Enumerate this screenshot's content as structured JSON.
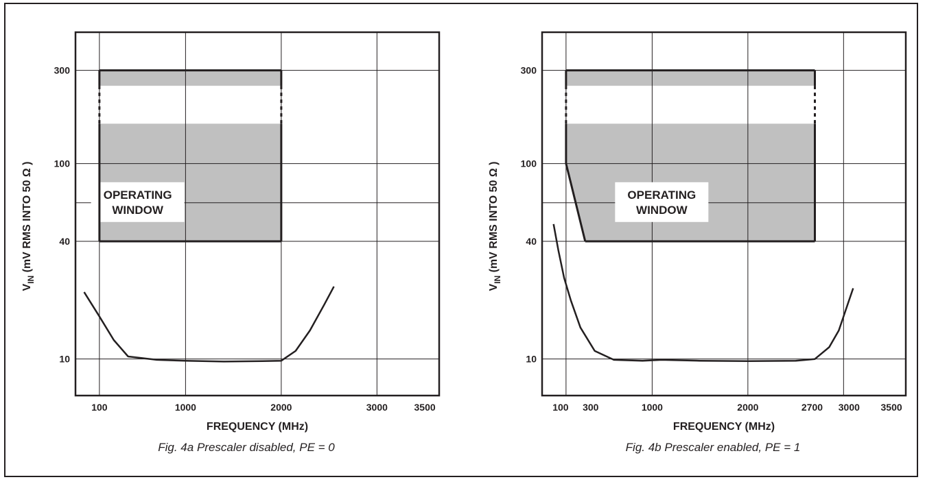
{
  "colors": {
    "ink": "#231f20",
    "region_fill": "#c0c0c0",
    "background": "#ffffff"
  },
  "chart_data": [
    {
      "type": "area",
      "caption": "Fig. 4a Prescaler disabled, PE = 0",
      "xlabel": "FREQUENCY (MHz)",
      "ylabel": "V",
      "ylabel_sub": "IN",
      "ylabel_rest": " (mV RMS INTO 50 Ω )",
      "y_scale": "log",
      "ylim": [
        6.5,
        470
      ],
      "xlim": [
        -150,
        3650
      ],
      "grid": true,
      "x_ticks": [
        {
          "value": 100,
          "label": "100"
        },
        {
          "value": 1000,
          "label": "1000"
        },
        {
          "value": 2000,
          "label": "2000"
        },
        {
          "value": 3000,
          "label": "3000"
        },
        {
          "value": 3500,
          "label": "3500"
        }
      ],
      "x_gridlines": [
        100,
        1000,
        2000,
        3000
      ],
      "y_ticks": [
        {
          "value": 300,
          "label": "300"
        },
        {
          "value": 100,
          "label": "100"
        },
        {
          "value": 40,
          "label": "40"
        },
        {
          "value": 10,
          "label": "10"
        }
      ],
      "y_gridlines": [
        300,
        100,
        63,
        40,
        10
      ],
      "window_label": [
        "OPERATING",
        "WINDOW"
      ],
      "window_label_center": {
        "x": 500,
        "y": 63
      },
      "operating_window": {
        "polygon": [
          [
            100,
            40
          ],
          [
            100,
            300
          ],
          [
            2000,
            300
          ],
          [
            2000,
            40
          ]
        ],
        "break_band": [
          160,
          250
        ]
      },
      "sensitivity_curve": [
        [
          -60,
          22
        ],
        [
          100,
          16.5
        ],
        [
          250,
          12.5
        ],
        [
          400,
          10.3
        ],
        [
          700,
          9.9
        ],
        [
          1000,
          9.8
        ],
        [
          1400,
          9.7
        ],
        [
          1800,
          9.75
        ],
        [
          2000,
          9.8
        ],
        [
          2150,
          11
        ],
        [
          2300,
          14
        ],
        [
          2450,
          19
        ],
        [
          2550,
          23.5
        ]
      ]
    },
    {
      "type": "area",
      "caption": "Fig. 4b Prescaler enabled, PE = 1",
      "xlabel": "FREQUENCY (MHz)",
      "ylabel": "V",
      "ylabel_sub": "IN",
      "ylabel_rest": " (mV RMS INTO 50 Ω )",
      "y_scale": "log",
      "ylim": [
        6.5,
        470
      ],
      "xlim": [
        -150,
        3650
      ],
      "grid": true,
      "x_ticks": [
        {
          "value": 100,
          "label": "100"
        },
        {
          "value": 300,
          "label": "300"
        },
        {
          "value": 1000,
          "label": "1000"
        },
        {
          "value": 2000,
          "label": "2000"
        },
        {
          "value": 2700,
          "label": "2700"
        },
        {
          "value": 3000,
          "label": "3000"
        },
        {
          "value": 3500,
          "label": "3500"
        }
      ],
      "x_gridlines": [
        100,
        1000,
        2000,
        3000
      ],
      "y_ticks": [
        {
          "value": 300,
          "label": "300"
        },
        {
          "value": 100,
          "label": "100"
        },
        {
          "value": 40,
          "label": "40"
        },
        {
          "value": 10,
          "label": "10"
        }
      ],
      "y_gridlines": [
        300,
        100,
        63,
        40,
        10
      ],
      "window_label": [
        "OPERATING",
        "WINDOW"
      ],
      "window_label_center": {
        "x": 1100,
        "y": 63
      },
      "operating_window": {
        "polygon": [
          [
            300,
            40
          ],
          [
            100,
            100
          ],
          [
            100,
            300
          ],
          [
            2700,
            300
          ],
          [
            2700,
            40
          ]
        ],
        "break_band": [
          160,
          250
        ]
      },
      "sensitivity_curve": [
        [
          -30,
          49
        ],
        [
          20,
          36
        ],
        [
          80,
          26
        ],
        [
          150,
          20
        ],
        [
          250,
          14.5
        ],
        [
          400,
          11
        ],
        [
          600,
          9.9
        ],
        [
          900,
          9.8
        ],
        [
          1100,
          9.9
        ],
        [
          1500,
          9.8
        ],
        [
          2000,
          9.75
        ],
        [
          2500,
          9.8
        ],
        [
          2700,
          10
        ],
        [
          2850,
          11.5
        ],
        [
          2950,
          14
        ],
        [
          3050,
          19.5
        ],
        [
          3100,
          23
        ]
      ]
    }
  ]
}
